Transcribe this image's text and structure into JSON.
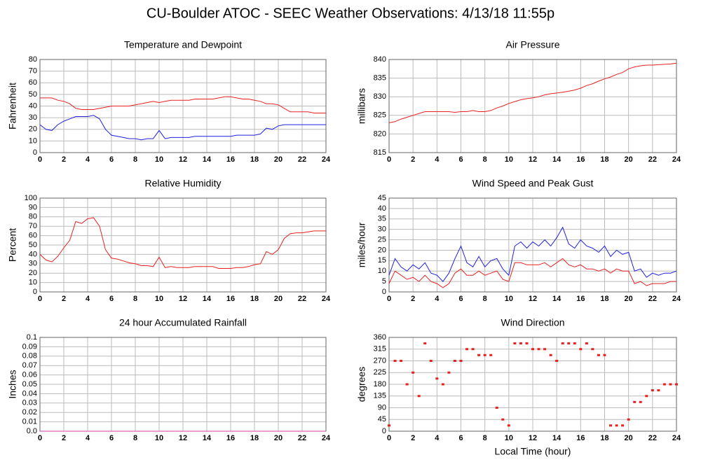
{
  "title": "CU-Boulder ATOC - SEEC Weather Observations: 4/13/18 11:55p",
  "chart_data": [
    {
      "type": "line",
      "title": "Temperature and Dewpoint",
      "ylabel": "Fahrenheit",
      "grid": true,
      "x": [
        0,
        0.5,
        1,
        1.5,
        2,
        2.5,
        3,
        3.5,
        4,
        4.5,
        5,
        5.5,
        6,
        6.5,
        7,
        7.5,
        8,
        8.5,
        9,
        9.5,
        10,
        10.5,
        11,
        11.5,
        12,
        12.5,
        13,
        13.5,
        14,
        14.5,
        15,
        15.5,
        16,
        16.5,
        17,
        17.5,
        18,
        18.5,
        19,
        19.5,
        20,
        20.5,
        21,
        21.5,
        22,
        22.5,
        23,
        23.5,
        24
      ],
      "series": [
        {
          "color": "#e82020",
          "values": [
            47,
            47,
            47,
            45,
            44,
            42,
            38,
            37,
            37,
            37,
            38,
            39,
            40,
            40,
            40,
            40,
            41,
            42,
            43,
            44,
            43,
            44,
            45,
            45,
            45,
            45,
            46,
            46,
            46,
            46,
            47,
            48,
            48,
            47,
            46,
            46,
            45,
            44,
            42,
            42,
            41,
            38,
            35,
            35,
            35,
            35,
            34,
            34,
            34
          ]
        },
        {
          "color": "#2020e0",
          "values": [
            24,
            20,
            19,
            24,
            27,
            29,
            31,
            31,
            31,
            32,
            29,
            20,
            15,
            14,
            13,
            12,
            12,
            11,
            12,
            12,
            19,
            12,
            13,
            13,
            13,
            13,
            14,
            14,
            14,
            14,
            14,
            14,
            14,
            15,
            15,
            15,
            15,
            16,
            21,
            20,
            23,
            24,
            24,
            24,
            24,
            24,
            24,
            24,
            24
          ]
        }
      ],
      "xlim": [
        0,
        24
      ],
      "xticks": [
        0,
        2,
        4,
        6,
        8,
        10,
        12,
        14,
        16,
        18,
        20,
        22,
        24
      ],
      "ylim": [
        0,
        80
      ],
      "yticks": [
        0,
        10,
        20,
        30,
        40,
        50,
        60,
        70,
        80
      ]
    },
    {
      "type": "line",
      "title": "Air Pressure",
      "ylabel": "millibars",
      "grid": true,
      "x": [
        0,
        0.5,
        1,
        1.5,
        2,
        2.5,
        3,
        3.5,
        4,
        4.5,
        5,
        5.5,
        6,
        6.5,
        7,
        7.5,
        8,
        8.5,
        9,
        9.5,
        10,
        10.5,
        11,
        11.5,
        12,
        12.5,
        13,
        13.5,
        14,
        14.5,
        15,
        15.5,
        16,
        16.5,
        17,
        17.5,
        18,
        18.5,
        19,
        19.5,
        20,
        20.5,
        21,
        21.5,
        22,
        22.5,
        23,
        23.5,
        24
      ],
      "series": [
        {
          "color": "#e82020",
          "values": [
            823,
            823.3,
            824,
            824.5,
            825,
            825.5,
            826,
            826,
            826,
            826,
            826,
            825.8,
            826,
            826,
            826.3,
            826,
            826,
            826.3,
            827,
            827.5,
            828.2,
            828.7,
            829.2,
            829.5,
            829.7,
            830,
            830.5,
            830.8,
            831,
            831.2,
            831.5,
            831.8,
            832.3,
            833,
            833.5,
            834.2,
            834.8,
            835.3,
            836,
            836.5,
            837.5,
            838,
            838.3,
            838.5,
            838.5,
            838.6,
            838.7,
            838.8,
            839
          ]
        }
      ],
      "xlim": [
        0,
        24
      ],
      "xticks": [
        0,
        2,
        4,
        6,
        8,
        10,
        12,
        14,
        16,
        18,
        20,
        22,
        24
      ],
      "ylim": [
        815,
        840
      ],
      "yticks": [
        815,
        820,
        825,
        830,
        835,
        840
      ]
    },
    {
      "type": "line",
      "title": "Relative Humidity",
      "ylabel": "Percent",
      "grid": true,
      "x": [
        0,
        0.5,
        1,
        1.5,
        2,
        2.5,
        3,
        3.5,
        4,
        4.5,
        5,
        5.5,
        6,
        6.5,
        7,
        7.5,
        8,
        8.5,
        9,
        9.5,
        10,
        10.5,
        11,
        11.5,
        12,
        12.5,
        13,
        13.5,
        14,
        14.5,
        15,
        15.5,
        16,
        16.5,
        17,
        17.5,
        18,
        18.5,
        19,
        19.5,
        20,
        20.5,
        21,
        21.5,
        22,
        22.5,
        23,
        23.5,
        24
      ],
      "series": [
        {
          "color": "#e82020",
          "values": [
            40,
            34,
            32,
            38,
            47,
            55,
            75,
            73,
            78,
            79,
            70,
            45,
            36,
            35,
            33,
            31,
            30,
            28,
            28,
            27,
            37,
            26,
            27,
            26,
            26,
            26,
            27,
            27,
            27,
            27,
            25,
            25,
            25,
            26,
            26,
            27,
            29,
            30,
            43,
            40,
            45,
            57,
            62,
            63,
            63,
            64,
            65,
            65,
            65
          ]
        }
      ],
      "xlim": [
        0,
        24
      ],
      "xticks": [
        0,
        2,
        4,
        6,
        8,
        10,
        12,
        14,
        16,
        18,
        20,
        22,
        24
      ],
      "ylim": [
        0,
        100
      ],
      "yticks": [
        0,
        10,
        20,
        30,
        40,
        50,
        60,
        70,
        80,
        90,
        100
      ]
    },
    {
      "type": "line",
      "title": "Wind Speed and Peak Gust",
      "ylabel": "miles/hour",
      "grid": true,
      "x": [
        0,
        0.5,
        1,
        1.5,
        2,
        2.5,
        3,
        3.5,
        4,
        4.5,
        5,
        5.5,
        6,
        6.5,
        7,
        7.5,
        8,
        8.5,
        9,
        9.5,
        10,
        10.5,
        11,
        11.5,
        12,
        12.5,
        13,
        13.5,
        14,
        14.5,
        15,
        15.5,
        16,
        16.5,
        17,
        17.5,
        18,
        18.5,
        19,
        19.5,
        20,
        20.5,
        21,
        21.5,
        22,
        22.5,
        23,
        23.5,
        24
      ],
      "series": [
        {
          "color": "#2020e0",
          "values": [
            8,
            16,
            12,
            10,
            13,
            11,
            14,
            9,
            8,
            5,
            9,
            16,
            22,
            14,
            12,
            17,
            12,
            15,
            16,
            11,
            8,
            22,
            24,
            21,
            24,
            22,
            25,
            22,
            26,
            31,
            23,
            21,
            25,
            22,
            21,
            19,
            22,
            17,
            20,
            18,
            19,
            10,
            11,
            7,
            9,
            8,
            9,
            9,
            10
          ]
        },
        {
          "color": "#e82020",
          "values": [
            4,
            10,
            8,
            6,
            7,
            5,
            8,
            5,
            4,
            2,
            4,
            9,
            11,
            8,
            8,
            10,
            8,
            9,
            10,
            6,
            5,
            14,
            14,
            13,
            13,
            13,
            14,
            12,
            14,
            16,
            13,
            12,
            13,
            11,
            11,
            10,
            11,
            9,
            11,
            10,
            10,
            4,
            5,
            3,
            4,
            4,
            4,
            5,
            5
          ]
        }
      ],
      "xlim": [
        0,
        24
      ],
      "xticks": [
        0,
        2,
        4,
        6,
        8,
        10,
        12,
        14,
        16,
        18,
        20,
        22,
        24
      ],
      "ylim": [
        0,
        45
      ],
      "yticks": [
        0,
        5,
        10,
        15,
        20,
        25,
        30,
        35,
        40,
        45
      ]
    },
    {
      "type": "line",
      "title": "24 hour Accumulated Rainfall",
      "ylabel": "Inches",
      "grid": true,
      "x": [
        0,
        24
      ],
      "series": [
        {
          "color": "#d040a0",
          "values": [
            0,
            0
          ]
        }
      ],
      "xlim": [
        0,
        24
      ],
      "xticks": [
        0,
        2,
        4,
        6,
        8,
        10,
        12,
        14,
        16,
        18,
        20,
        22,
        24
      ],
      "ylim": [
        0,
        0.1
      ],
      "yticks": [
        {
          "value": 0,
          "label": "0.0"
        },
        0.01,
        0.02,
        0.03,
        0.04,
        0.05,
        0.06,
        0.07,
        0.08,
        0.09,
        0.1
      ]
    },
    {
      "type": "scatter",
      "title": "Wind Direction",
      "ylabel": "degrees",
      "xlabel": "Local Time (hour)",
      "grid": true,
      "x": [
        0,
        0.5,
        1,
        1.5,
        2,
        2.5,
        3,
        3.5,
        4,
        4.5,
        5,
        5.5,
        6,
        6.5,
        7,
        7.5,
        8,
        8.5,
        9,
        9.5,
        10,
        10.5,
        11,
        11.5,
        12,
        12.5,
        13,
        13.5,
        14,
        14.5,
        15,
        15.5,
        16,
        16.5,
        17,
        17.5,
        18,
        18.5,
        19,
        19.5,
        20,
        20.5,
        21,
        21.5,
        22,
        22.5,
        23,
        23.5,
        24
      ],
      "series": [
        {
          "color": "#e82020",
          "values": [
            22,
            270,
            270,
            180,
            225,
            135,
            337,
            270,
            202,
            180,
            225,
            270,
            270,
            315,
            315,
            292,
            292,
            292,
            90,
            45,
            22,
            337,
            337,
            337,
            315,
            315,
            315,
            292,
            270,
            337,
            337,
            337,
            315,
            337,
            315,
            292,
            292,
            22,
            22,
            22,
            45,
            112,
            112,
            135,
            157,
            157,
            180,
            180,
            180
          ]
        }
      ],
      "xlim": [
        0,
        24
      ],
      "xticks": [
        0,
        2,
        4,
        6,
        8,
        10,
        12,
        14,
        16,
        18,
        20,
        22,
        24
      ],
      "ylim": [
        0,
        360
      ],
      "yticks": [
        0,
        45,
        90,
        135,
        180,
        225,
        270,
        315,
        360
      ]
    }
  ]
}
